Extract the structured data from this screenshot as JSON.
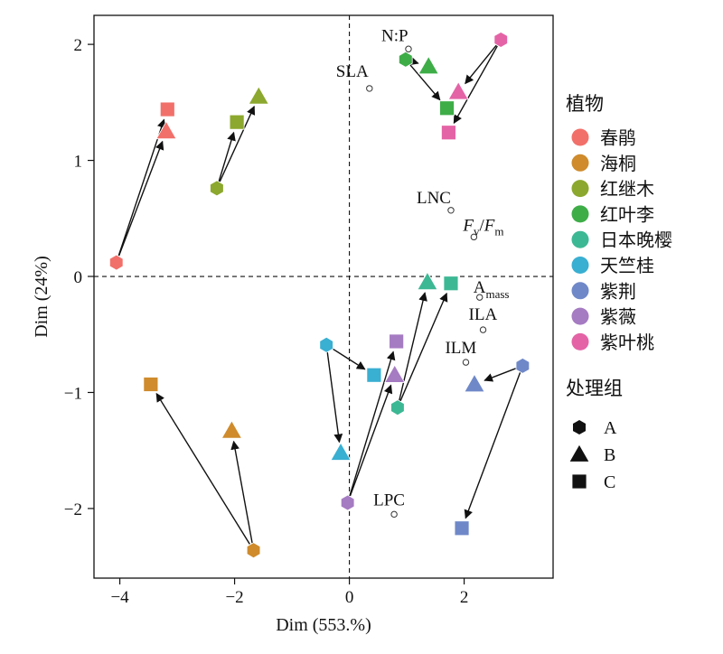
{
  "chart_data": {
    "type": "scatter",
    "xlabel": "Dim (553.%)",
    "ylabel": "Dim (24%)",
    "xlim": [
      -4.45,
      3.55
    ],
    "ylim": [
      -2.6,
      2.25
    ],
    "xticks": [
      {
        "value": -4,
        "label": "−4"
      },
      {
        "value": -2,
        "label": "−2"
      },
      {
        "value": 0,
        "label": "0"
      },
      {
        "value": 2,
        "label": "2"
      }
    ],
    "yticks": [
      {
        "value": 2,
        "label": "2"
      },
      {
        "value": 1,
        "label": "1"
      },
      {
        "value": 0,
        "label": "0"
      },
      {
        "value": -1,
        "label": "−1"
      },
      {
        "value": -2,
        "label": "−2"
      }
    ],
    "reference_lines": {
      "x": 0,
      "y": 0,
      "style": "dashed"
    },
    "legend_plants": {
      "title": "植物",
      "items": [
        {
          "name": "春鹃",
          "color": "#F2706A"
        },
        {
          "name": "海桐",
          "color": "#CF8B2C"
        },
        {
          "name": "红继木",
          "color": "#8CA82E"
        },
        {
          "name": "红叶李",
          "color": "#3EAD48"
        },
        {
          "name": "日本晚樱",
          "color": "#3DB894"
        },
        {
          "name": "天竺桂",
          "color": "#39AFD2"
        },
        {
          "name": "紫荆",
          "color": "#6F88C8"
        },
        {
          "name": "紫薇",
          "color": "#A57BC2"
        },
        {
          "name": "紫叶桃",
          "color": "#E463A6"
        }
      ]
    },
    "legend_treatments": {
      "title": "处理组",
      "items": [
        {
          "name": "A",
          "shape": "hexagon"
        },
        {
          "name": "B",
          "shape": "triangle"
        },
        {
          "name": "C",
          "shape": "square"
        }
      ]
    },
    "variables": [
      {
        "label": "N:P",
        "x": 1.03,
        "y": 1.96
      },
      {
        "label": "SLA",
        "x": 0.35,
        "y": 1.62
      },
      {
        "label": "LNC",
        "x": 1.77,
        "y": 0.57
      },
      {
        "label": "Fv/Fm",
        "x": 2.17,
        "y": 0.34
      },
      {
        "label": "Amass",
        "x": 2.27,
        "y": -0.18
      },
      {
        "label": "ILA",
        "x": 2.33,
        "y": -0.46
      },
      {
        "label": "ILM",
        "x": 2.03,
        "y": -0.74
      },
      {
        "label": "LPC",
        "x": 0.78,
        "y": -2.05
      }
    ],
    "series": [
      {
        "name": "春鹃",
        "points": {
          "A": [
            -4.06,
            0.12
          ],
          "B": [
            -3.19,
            1.25
          ],
          "C": [
            -3.17,
            1.44
          ]
        }
      },
      {
        "name": "海桐",
        "points": {
          "A": [
            -1.67,
            -2.36
          ],
          "B": [
            -2.05,
            -1.33
          ],
          "C": [
            -3.46,
            -0.93
          ]
        }
      },
      {
        "name": "红继木",
        "points": {
          "A": [
            -2.31,
            0.76
          ],
          "B": [
            -1.58,
            1.55
          ],
          "C": [
            -1.96,
            1.33
          ]
        }
      },
      {
        "name": "红叶李",
        "points": {
          "A": [
            0.98,
            1.87
          ],
          "B": [
            1.38,
            1.81
          ],
          "C": [
            1.7,
            1.45
          ]
        }
      },
      {
        "name": "日本晚樱",
        "points": {
          "A": [
            0.84,
            -1.13
          ],
          "B": [
            1.36,
            -0.05
          ],
          "C": [
            1.77,
            -0.06
          ]
        }
      },
      {
        "name": "天竺桂",
        "points": {
          "A": [
            -0.4,
            -0.59
          ],
          "B": [
            -0.15,
            -1.52
          ],
          "C": [
            0.43,
            -0.85
          ]
        }
      },
      {
        "name": "紫荆",
        "points": {
          "A": [
            3.02,
            -0.77
          ],
          "B": [
            2.18,
            -0.93
          ],
          "C": [
            1.96,
            -2.17
          ]
        }
      },
      {
        "name": "紫薇",
        "points": {
          "A": [
            -0.03,
            -1.95
          ],
          "B": [
            0.79,
            -0.85
          ],
          "C": [
            0.82,
            -0.56
          ]
        }
      },
      {
        "name": "紫叶桃",
        "points": {
          "A": [
            2.64,
            2.04
          ],
          "B": [
            1.9,
            1.59
          ],
          "C": [
            1.73,
            1.24
          ]
        }
      }
    ]
  }
}
